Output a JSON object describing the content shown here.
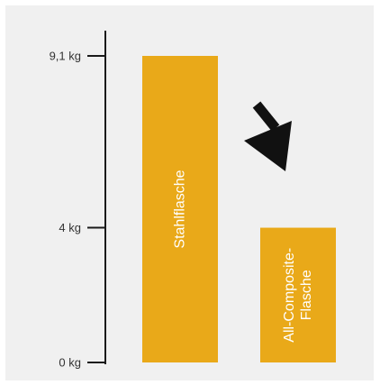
{
  "chart_data": {
    "type": "bar",
    "categories": [
      "Stahlflasche",
      "All-Composite-Flasche"
    ],
    "category_label_lines": [
      [
        "Stahlflasche"
      ],
      [
        "All-Composite-",
        "Flasche"
      ]
    ],
    "values": [
      9.1,
      4
    ],
    "yticks": [
      {
        "value": 0,
        "label": "0 kg"
      },
      {
        "value": 4,
        "label": "4 kg"
      },
      {
        "value": 9.1,
        "label": "9,1 kg"
      }
    ],
    "ylim": [
      0,
      9.1
    ],
    "grid": false,
    "legend": "none",
    "annotation_icon": "arrow-down-right-icon",
    "colors": {
      "bar": "#e9a919",
      "axis": "#1a1a1a",
      "background": "#f0f0f0",
      "arrow": "#111111",
      "bar_label": "#ffffff"
    }
  }
}
